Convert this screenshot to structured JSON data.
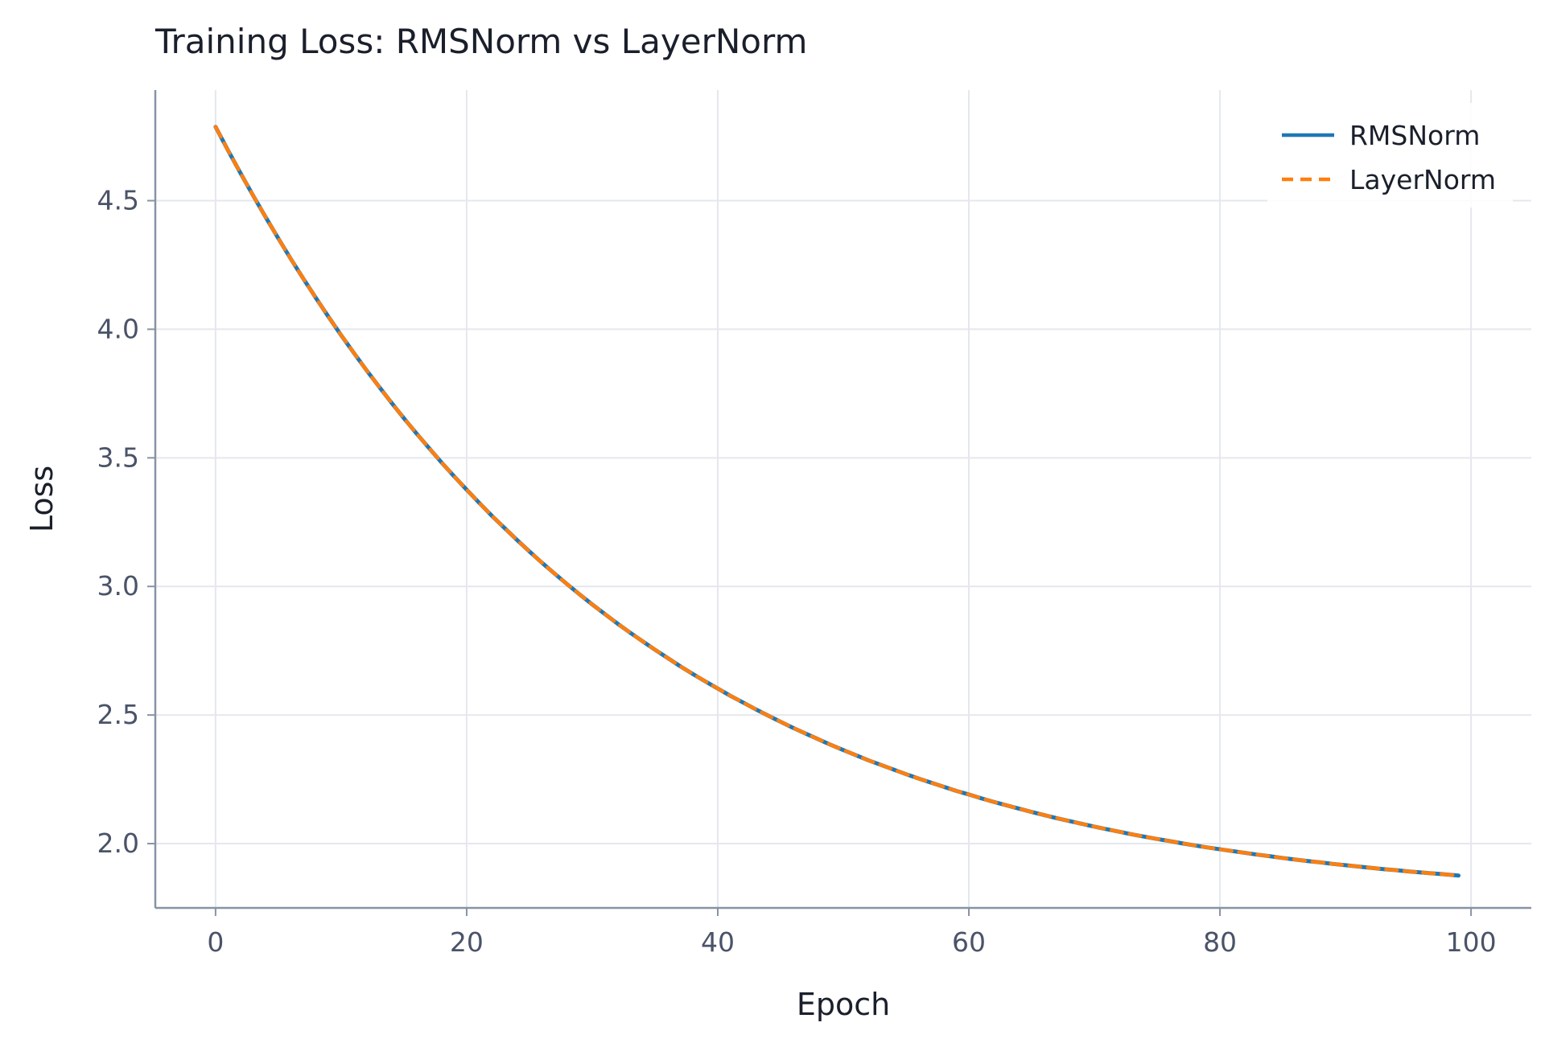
{
  "chart_data": {
    "type": "line",
    "title": "Training Loss: RMSNorm vs LayerNorm",
    "xlabel": "Epoch",
    "ylabel": "Loss",
    "xlim": [
      -4.8,
      104.8
    ],
    "ylim": [
      1.75,
      4.93
    ],
    "xticks": [
      0,
      20,
      40,
      60,
      80,
      100
    ],
    "yticks": [
      2.0,
      2.5,
      3.0,
      3.5,
      4.0,
      4.5
    ],
    "ytick_labels": [
      "2.0",
      "2.5",
      "3.0",
      "3.5",
      "4.0",
      "4.5"
    ],
    "grid": true,
    "legend_position": "top-right",
    "x": [
      0,
      1,
      2,
      3,
      4,
      5,
      6,
      7,
      8,
      9,
      10,
      11,
      12,
      13,
      14,
      15,
      16,
      17,
      18,
      19,
      20,
      21,
      22,
      23,
      24,
      25,
      26,
      27,
      28,
      29,
      30,
      31,
      32,
      33,
      34,
      35,
      36,
      37,
      38,
      39,
      40,
      41,
      42,
      43,
      44,
      45,
      46,
      47,
      48,
      49,
      50,
      51,
      52,
      53,
      54,
      55,
      56,
      57,
      58,
      59,
      60,
      61,
      62,
      63,
      64,
      65,
      66,
      67,
      68,
      69,
      70,
      71,
      72,
      73,
      74,
      75,
      76,
      77,
      78,
      79,
      80,
      81,
      82,
      83,
      84,
      85,
      86,
      87,
      88,
      89,
      90,
      91,
      92,
      93,
      94,
      95,
      96,
      97,
      98,
      99
    ],
    "series": [
      {
        "name": "RMSNorm",
        "color": "#1f77b4",
        "dash": "solid",
        "values": [
          4.787,
          4.695,
          4.606,
          4.519,
          4.435,
          4.353,
          4.273,
          4.196,
          4.121,
          4.048,
          3.977,
          3.909,
          3.842,
          3.778,
          3.715,
          3.654,
          3.595,
          3.538,
          3.482,
          3.428,
          3.376,
          3.325,
          3.275,
          3.228,
          3.181,
          3.136,
          3.092,
          3.05,
          3.009,
          2.969,
          2.93,
          2.893,
          2.856,
          2.821,
          2.787,
          2.754,
          2.722,
          2.69,
          2.66,
          2.631,
          2.603,
          2.575,
          2.549,
          2.523,
          2.498,
          2.474,
          2.45,
          2.428,
          2.406,
          2.384,
          2.364,
          2.344,
          2.324,
          2.306,
          2.288,
          2.27,
          2.253,
          2.237,
          2.221,
          2.205,
          2.191,
          2.176,
          2.162,
          2.149,
          2.136,
          2.123,
          2.111,
          2.099,
          2.088,
          2.077,
          2.066,
          2.056,
          2.046,
          2.036,
          2.027,
          2.018,
          2.01,
          2.001,
          1.993,
          1.985,
          1.978,
          1.971,
          1.964,
          1.957,
          1.951,
          1.944,
          1.938,
          1.932,
          1.927,
          1.921,
          1.916,
          1.911,
          1.906,
          1.901,
          1.897,
          1.892,
          1.888,
          1.884,
          1.88,
          1.876
        ]
      },
      {
        "name": "LayerNorm",
        "color": "#ff7f0e",
        "dash": "dashed",
        "values": [
          4.787,
          4.695,
          4.606,
          4.519,
          4.435,
          4.353,
          4.273,
          4.196,
          4.121,
          4.048,
          3.977,
          3.909,
          3.842,
          3.778,
          3.715,
          3.654,
          3.595,
          3.538,
          3.482,
          3.428,
          3.376,
          3.325,
          3.275,
          3.228,
          3.181,
          3.136,
          3.092,
          3.05,
          3.009,
          2.969,
          2.93,
          2.893,
          2.856,
          2.821,
          2.787,
          2.754,
          2.722,
          2.69,
          2.66,
          2.631,
          2.603,
          2.575,
          2.549,
          2.523,
          2.498,
          2.474,
          2.45,
          2.428,
          2.406,
          2.384,
          2.364,
          2.344,
          2.324,
          2.306,
          2.288,
          2.27,
          2.253,
          2.237,
          2.221,
          2.205,
          2.191,
          2.176,
          2.162,
          2.149,
          2.136,
          2.123,
          2.111,
          2.099,
          2.088,
          2.077,
          2.066,
          2.056,
          2.046,
          2.036,
          2.027,
          2.018,
          2.01,
          2.001,
          1.993,
          1.985,
          1.978,
          1.971,
          1.964,
          1.957,
          1.951,
          1.944,
          1.938,
          1.932,
          1.927,
          1.921,
          1.916,
          1.911,
          1.906,
          1.901,
          1.897,
          1.892,
          1.888,
          1.884,
          1.88,
          1.876
        ]
      }
    ]
  }
}
